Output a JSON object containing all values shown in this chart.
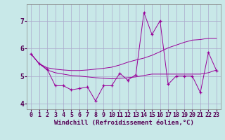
{
  "x": [
    0,
    1,
    2,
    3,
    4,
    5,
    6,
    7,
    8,
    9,
    10,
    11,
    12,
    13,
    14,
    15,
    16,
    17,
    18,
    19,
    20,
    21,
    22,
    23
  ],
  "jagged_line": [
    5.8,
    5.45,
    5.25,
    4.65,
    4.65,
    4.5,
    4.55,
    4.6,
    4.1,
    4.65,
    4.65,
    5.1,
    4.85,
    5.05,
    7.3,
    6.5,
    7.0,
    4.7,
    5.0,
    5.0,
    5.0,
    4.4,
    5.85,
    5.2
  ],
  "upper_line": [
    5.8,
    5.45,
    5.3,
    5.25,
    5.22,
    5.2,
    5.2,
    5.22,
    5.25,
    5.28,
    5.32,
    5.4,
    5.5,
    5.58,
    5.65,
    5.75,
    5.88,
    6.02,
    6.12,
    6.22,
    6.3,
    6.32,
    6.37,
    6.37
  ],
  "lower_line": [
    5.8,
    5.45,
    5.22,
    5.12,
    5.07,
    5.02,
    5.0,
    4.97,
    4.94,
    4.92,
    4.9,
    4.92,
    4.94,
    4.97,
    5.02,
    5.07,
    5.07,
    5.07,
    5.07,
    5.07,
    5.07,
    5.07,
    5.12,
    5.22
  ],
  "line_color": "#990099",
  "bg_color": "#c8e8e8",
  "grid_color": "#aaaacc",
  "xlabel": "Windchill (Refroidissement éolien,°C)",
  "ylim": [
    3.8,
    7.6
  ],
  "xlim": [
    -0.5,
    23.5
  ],
  "yticks": [
    4,
    5,
    6,
    7
  ],
  "xticks": [
    0,
    1,
    2,
    3,
    4,
    5,
    6,
    7,
    8,
    9,
    10,
    11,
    12,
    13,
    14,
    15,
    16,
    17,
    18,
    19,
    20,
    21,
    22,
    23
  ],
  "tick_fontsize": 6,
  "xlabel_fontsize": 6.5
}
